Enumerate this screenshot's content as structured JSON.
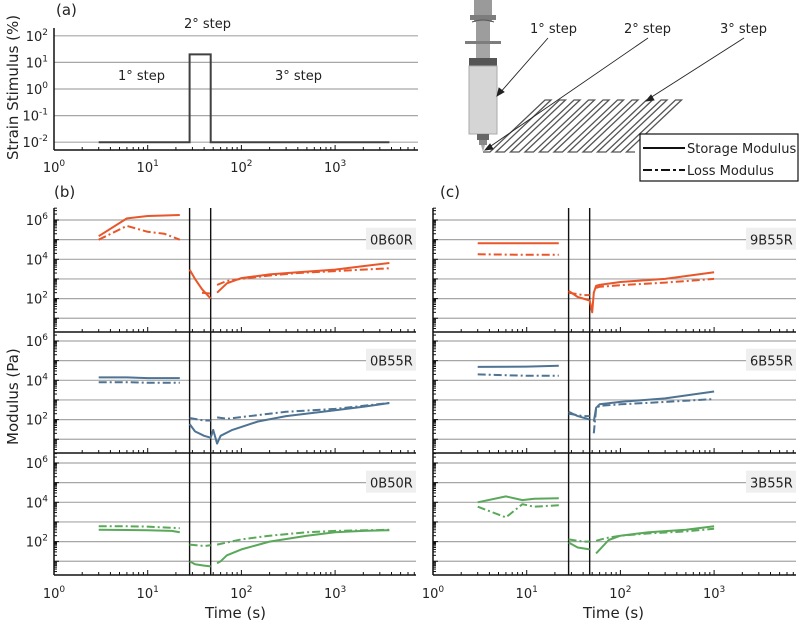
{
  "chart_data": [
    {
      "id": "a",
      "type": "line",
      "panel_label": "(a)",
      "ylabel": "Strain Stimulus (%)",
      "xlabel": "",
      "xscale": "log",
      "yscale": "log",
      "xlim": [
        1,
        7000
      ],
      "ylim": [
        0.005,
        200
      ],
      "xticks": [
        {
          "base": "10",
          "exp": "0"
        },
        {
          "base": "10",
          "exp": "1"
        },
        {
          "base": "10",
          "exp": "2"
        },
        {
          "base": "10",
          "exp": "3"
        }
      ],
      "yticks": [
        {
          "base": "10",
          "exp": "2"
        },
        {
          "base": "10",
          "exp": "1"
        },
        {
          "base": "10",
          "exp": "0"
        },
        {
          "base": "10",
          "exp": "-1"
        },
        {
          "base": "10",
          "exp": "-2"
        }
      ],
      "grid": true,
      "annotations": [
        "1° step",
        "2° step",
        "3° step"
      ],
      "series": [
        {
          "name": "Strain",
          "color": "#404040",
          "style": "solid",
          "x": [
            3,
            28,
            28,
            47,
            47,
            3800
          ],
          "y": [
            0.01,
            0.01,
            20,
            20,
            0.01,
            0.01
          ]
        }
      ]
    },
    {
      "id": "schematic",
      "type": "diagram",
      "annotations": [
        "1° step",
        "2° step",
        "3° step"
      ],
      "legend": [
        {
          "label": "Storage Modulus",
          "style": "solid"
        },
        {
          "label": "Loss Modulus",
          "style": "dash-dot"
        }
      ]
    },
    {
      "id": "b",
      "type": "line",
      "panel_label": "(b)",
      "ylabel": "Modulus (Pa)",
      "xlabel": "Time (s)",
      "xscale": "log",
      "yscale": "log",
      "xlim": [
        1,
        7000
      ],
      "ylim": [
        3,
        3000000
      ],
      "xticks": [
        {
          "base": "10",
          "exp": "0"
        },
        {
          "base": "10",
          "exp": "1"
        },
        {
          "base": "10",
          "exp": "2"
        },
        {
          "base": "10",
          "exp": "3"
        }
      ],
      "yticks": [
        {
          "base": "10",
          "exp": "6"
        },
        {
          "base": "10",
          "exp": "4"
        },
        {
          "base": "10",
          "exp": "2"
        }
      ],
      "step_boundaries": [
        28,
        47
      ],
      "grid": true,
      "subplots": [
        {
          "sample": "0B60R",
          "color": "#e8562a",
          "storage": {
            "x": [
              3,
              6,
              10,
              15,
              22,
              28,
              32,
              38,
              47,
              55,
              70,
              100,
              200,
              400,
              1000,
              2000,
              3800
            ],
            "y": [
              150000,
              1200000,
              1600000,
              1700000,
              1800000,
              3000,
              1000,
              300,
              100,
              200,
              600,
              1100,
              1700,
              2200,
              3000,
              4500,
              6500
            ]
          },
          "loss": {
            "x": [
              3,
              6,
              10,
              15,
              22,
              38,
              47,
              55,
              70,
              100,
              200,
              400,
              1000,
              2000,
              3800
            ],
            "y": [
              100000,
              500000,
              250000,
              200000,
              100000,
              200,
              180,
              500,
              800,
              1000,
              1500,
              2000,
              2500,
              3000,
              3500
            ]
          }
        },
        {
          "sample": "0B55R",
          "color": "#4f7393",
          "storage": {
            "x": [
              3,
              6,
              10,
              22,
              28,
              32,
              40,
              47,
              50,
              55,
              60,
              80,
              150,
              300,
              1000,
              2000,
              3800
            ],
            "y": [
              14000,
              14000,
              13000,
              13000,
              60,
              25,
              15,
              12,
              30,
              6,
              15,
              30,
              80,
              150,
              300,
              450,
              700
            ]
          },
          "loss": {
            "x": [
              3,
              6,
              10,
              22,
              28,
              40,
              47,
              55,
              70,
              150,
              300,
              1000,
              3800
            ],
            "y": [
              8000,
              8000,
              7500,
              7500,
              120,
              90,
              90,
              130,
              110,
              170,
              250,
              350,
              700
            ]
          }
        },
        {
          "sample": "0B50R",
          "color": "#5aa85a",
          "storage": {
            "x": [
              3,
              6,
              10,
              18,
              22,
              28,
              32,
              40,
              47,
              55,
              60,
              70,
              100,
              200,
              500,
              1000,
              2000,
              3800
            ],
            "y": [
              400,
              390,
              380,
              350,
              300,
              10,
              7,
              6,
              5.5,
              8,
              10,
              20,
              40,
              100,
              200,
              300,
              350,
              380
            ]
          },
          "loss": {
            "x": [
              3,
              6,
              10,
              22,
              28,
              40,
              47,
              55,
              70,
              100,
              200,
              500,
              1000,
              3800
            ],
            "y": [
              600,
              600,
              580,
              480,
              70,
              60,
              65,
              70,
              90,
              130,
              200,
              300,
              350,
              400
            ]
          }
        }
      ]
    },
    {
      "id": "c",
      "type": "line",
      "panel_label": "(c)",
      "ylabel": "Modulus (Pa)",
      "xlabel": "Time (s)",
      "xscale": "log",
      "yscale": "log",
      "xlim": [
        1,
        7000
      ],
      "ylim": [
        3,
        3000000
      ],
      "xticks": [
        {
          "base": "10",
          "exp": "0"
        },
        {
          "base": "10",
          "exp": "1"
        },
        {
          "base": "10",
          "exp": "2"
        },
        {
          "base": "10",
          "exp": "3"
        }
      ],
      "step_boundaries": [
        28,
        47
      ],
      "grid": true,
      "subplots": [
        {
          "sample": "9B55R",
          "color": "#e8562a",
          "storage": {
            "x": [
              3,
              10,
              22,
              28,
              35,
              47,
              50,
              52,
              55,
              60,
              100,
              300,
              1000
            ],
            "y": [
              65000,
              65000,
              65000,
              250,
              120,
              80,
              20,
              200,
              450,
              500,
              700,
              1000,
              2200
            ]
          },
          "loss": {
            "x": [
              3,
              10,
              22,
              28,
              40,
              47,
              55,
              60,
              100,
              300,
              1000
            ],
            "y": [
              18000,
              17000,
              17000,
              200,
              150,
              150,
              350,
              400,
              480,
              650,
              1000
            ]
          }
        },
        {
          "sample": "6B55R",
          "color": "#4f7393",
          "storage": {
            "x": [
              3,
              10,
              22,
              28,
              35,
              47,
              52,
              55,
              60,
              100,
              300,
              1000
            ],
            "y": [
              48000,
              50000,
              55000,
              250,
              150,
              100,
              80,
              400,
              600,
              800,
              1200,
              2700
            ]
          },
          "loss": {
            "x": [
              3,
              10,
              22,
              28,
              40,
              47,
              52,
              55,
              60,
              100,
              300,
              1000
            ],
            "y": [
              20000,
              17000,
              17000,
              200,
              150,
              150,
              20,
              350,
              500,
              600,
              800,
              1100
            ]
          }
        },
        {
          "sample": "3B55R",
          "color": "#5aa85a",
          "storage": {
            "x": [
              3,
              6,
              9,
              12,
              22,
              28,
              35,
              47,
              55,
              75,
              100,
              200,
              500,
              1000
            ],
            "y": [
              10000,
              20000,
              13000,
              15000,
              16000,
              90,
              50,
              40,
              25,
              120,
              200,
              300,
              400,
              600
            ]
          },
          "loss": {
            "x": [
              3,
              6,
              9,
              12,
              22,
              28,
              40,
              47,
              55,
              70,
              100,
              200,
              500,
              1000
            ],
            "y": [
              6000,
              1700,
              8000,
              6000,
              7000,
              130,
              100,
              100,
              110,
              150,
              200,
              260,
              330,
              450
            ]
          }
        }
      ]
    }
  ]
}
